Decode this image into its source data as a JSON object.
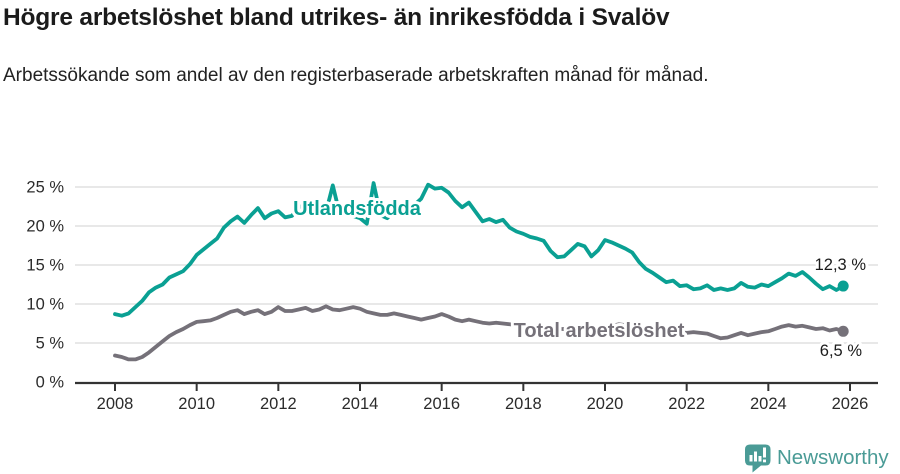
{
  "header": {
    "title": "Högre arbetslöshet bland utrikes- än inrikesfödda i Svalöv",
    "subtitle": "Arbetssökande som andel av den registerbaserade arbetskraften månad för månad."
  },
  "colors": {
    "foreign_born_line": "#0aa093",
    "total_line": "#757179",
    "grid": "#d9d9d9",
    "axis": "#333333",
    "tick_text": "#2b2b2b",
    "title_text": "#1b1b1b",
    "logo": "#4a9b96",
    "background": "#ffffff"
  },
  "footer": {
    "brand": "Newsworthy",
    "logo_icon": "bar-chart-speech-bubble-icon"
  },
  "chart_data": {
    "type": "line",
    "title": "Högre arbetslöshet bland utrikes- än inrikesfödda i Svalöv",
    "subtitle": "Arbetssökande som andel av den registerbaserade arbetskraften månad för månad.",
    "xlabel": "",
    "ylabel": "",
    "grid": true,
    "legend_position": "inline-labels",
    "xlim": [
      2007.0,
      2026.7
    ],
    "ylim": [
      0,
      26.5
    ],
    "x_ticks": [
      {
        "value": 2008,
        "label": "2008"
      },
      {
        "value": 2010,
        "label": "2010"
      },
      {
        "value": 2012,
        "label": "2012"
      },
      {
        "value": 2014,
        "label": "2014"
      },
      {
        "value": 2016,
        "label": "2016"
      },
      {
        "value": 2018,
        "label": "2018"
      },
      {
        "value": 2020,
        "label": "2020"
      },
      {
        "value": 2022,
        "label": "2022"
      },
      {
        "value": 2024,
        "label": "2024"
      },
      {
        "value": 2026,
        "label": "2026"
      }
    ],
    "y_ticks": [
      {
        "value": 0,
        "label": "0 %"
      },
      {
        "value": 5,
        "label": "5 %"
      },
      {
        "value": 10,
        "label": "10 %"
      },
      {
        "value": 15,
        "label": "15 %"
      },
      {
        "value": 20,
        "label": "20 %"
      },
      {
        "value": 25,
        "label": "25 %"
      }
    ],
    "x_start": 2008.0,
    "points_per_year": 6,
    "series": [
      {
        "name": "Utlandsfödda",
        "color": "#0aa093",
        "end_label": "12,3 %",
        "end_value": 12.3,
        "values": [
          8.7,
          8.5,
          8.8,
          9.6,
          10.4,
          11.5,
          12.1,
          12.5,
          13.4,
          13.8,
          14.2,
          15.1,
          16.3,
          17.0,
          17.7,
          18.4,
          19.8,
          20.6,
          21.2,
          20.4,
          21.4,
          22.3,
          21.0,
          21.6,
          21.9,
          21.1,
          21.3,
          22.4,
          22.8,
          21.8,
          21.4,
          21.8,
          25.2,
          21.6,
          22.0,
          21.3,
          21.0,
          20.3,
          25.5,
          21.4,
          21.0,
          21.9,
          22.0,
          21.6,
          22.7,
          23.5,
          25.3,
          24.8,
          24.9,
          24.3,
          23.2,
          22.4,
          23.0,
          21.8,
          20.6,
          20.9,
          20.5,
          20.8,
          19.8,
          19.3,
          19.0,
          18.6,
          18.4,
          18.1,
          16.8,
          16.0,
          16.1,
          16.9,
          17.7,
          17.4,
          16.1,
          16.9,
          18.2,
          17.9,
          17.5,
          17.1,
          16.6,
          15.4,
          14.5,
          14.0,
          13.4,
          12.8,
          13.0,
          12.3,
          12.4,
          11.9,
          12.0,
          12.4,
          11.8,
          12.0,
          11.8,
          12.0,
          12.7,
          12.2,
          12.1,
          12.5,
          12.3,
          12.8,
          13.3,
          13.9,
          13.6,
          14.1,
          13.4,
          12.6,
          11.9,
          12.3,
          11.8,
          12.3
        ]
      },
      {
        "name": "Total arbetslöshet",
        "color": "#757179",
        "end_label": "6,5 %",
        "end_value": 6.5,
        "values": [
          3.4,
          3.2,
          2.9,
          2.9,
          3.2,
          3.8,
          4.5,
          5.2,
          5.9,
          6.4,
          6.8,
          7.3,
          7.7,
          7.8,
          7.9,
          8.2,
          8.6,
          9.0,
          9.2,
          8.7,
          9.0,
          9.2,
          8.7,
          9.0,
          9.6,
          9.1,
          9.1,
          9.3,
          9.5,
          9.1,
          9.3,
          9.7,
          9.3,
          9.2,
          9.4,
          9.6,
          9.4,
          9.0,
          8.8,
          8.6,
          8.6,
          8.8,
          8.6,
          8.4,
          8.2,
          8.0,
          8.2,
          8.4,
          8.7,
          8.4,
          8.0,
          7.8,
          8.0,
          7.8,
          7.6,
          7.5,
          7.6,
          7.5,
          7.4,
          7.3,
          7.2,
          7.1,
          7.0,
          6.9,
          6.9,
          6.8,
          6.8,
          6.7,
          6.7,
          6.6,
          6.6,
          6.7,
          6.9,
          7.2,
          7.4,
          7.3,
          7.2,
          7.0,
          6.9,
          6.8,
          6.6,
          6.5,
          6.4,
          6.4,
          6.3,
          6.4,
          6.3,
          6.2,
          5.9,
          5.6,
          5.7,
          6.0,
          6.3,
          6.0,
          6.2,
          6.4,
          6.5,
          6.8,
          7.1,
          7.3,
          7.1,
          7.2,
          7.0,
          6.8,
          6.9,
          6.6,
          6.8,
          6.5
        ]
      }
    ]
  }
}
